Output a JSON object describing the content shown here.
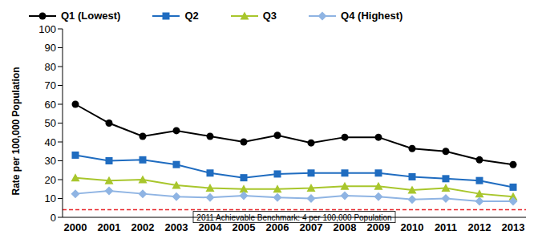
{
  "chart_data": {
    "type": "line",
    "y_label": "Rate per 100,000 Population",
    "categories": [
      "2000",
      "2001",
      "2002",
      "2003",
      "2004",
      "2005",
      "2006",
      "2007",
      "2008",
      "2009",
      "2010",
      "2011",
      "2012",
      "2013"
    ],
    "series": [
      {
        "name": "Q1 (Lowest)",
        "color": "#000000",
        "marker": "circle",
        "values": [
          60,
          50,
          43,
          46,
          43,
          40,
          43.5,
          39.5,
          42.5,
          42.5,
          36.5,
          35,
          30.5,
          28
        ]
      },
      {
        "name": "Q2",
        "color": "#1f6cc0",
        "marker": "square",
        "values": [
          33,
          30,
          30.5,
          28,
          23.5,
          21,
          23,
          23.5,
          23.5,
          23.5,
          21.5,
          20.5,
          19.5,
          16
        ]
      },
      {
        "name": "Q3",
        "color": "#a8c62c",
        "marker": "triangle",
        "values": [
          21,
          19.5,
          20,
          17,
          15.5,
          15,
          15,
          15.5,
          16.5,
          16.5,
          14.5,
          15.5,
          12.5,
          11
        ]
      },
      {
        "name": "Q4 (Highest)",
        "color": "#8fb4e3",
        "marker": "diamond",
        "values": [
          12.5,
          14,
          12.5,
          11,
          10.5,
          11.5,
          10.5,
          10,
          11.5,
          11,
          9.5,
          10,
          8.5,
          8.5
        ]
      }
    ],
    "ylim": [
      0,
      100
    ],
    "yticks": [
      0,
      10,
      20,
      30,
      40,
      50,
      60,
      70,
      80,
      90,
      100
    ],
    "grid": false,
    "legend": "top",
    "benchmark": {
      "value": 4,
      "label": "2011 Achievable Benchmark: 4 per 100,000 Population",
      "color": "#e8262b",
      "line_style": "dashed"
    }
  }
}
